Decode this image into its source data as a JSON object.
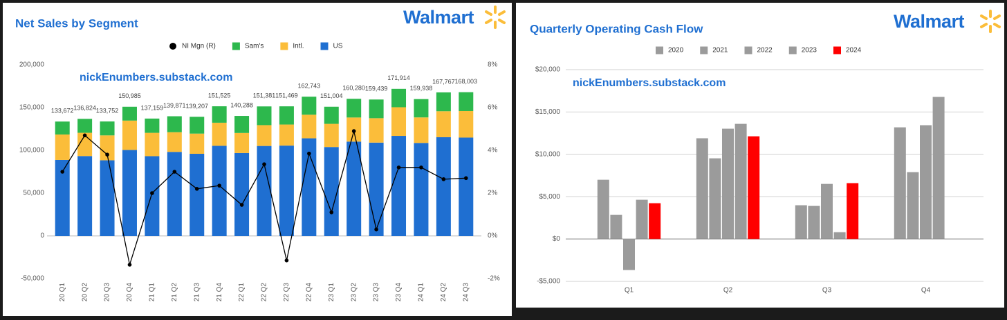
{
  "chart_data": [
    {
      "type": "bar",
      "stacked": true,
      "title": "Net Sales by Segment",
      "logo": "Walmart",
      "watermark": "nickEnumbers.substack.com",
      "categories": [
        "20 Q1",
        "20 Q2",
        "20 Q3",
        "20 Q4",
        "21 Q1",
        "21 Q2",
        "21 Q3",
        "21 Q4",
        "22 Q1",
        "22 Q2",
        "22 Q3",
        "22 Q4",
        "23 Q1",
        "23 Q2",
        "23 Q3",
        "23 Q4",
        "24 Q1",
        "24 Q2",
        "24 Q3"
      ],
      "series": [
        {
          "name": "US",
          "color": "#1f6fd1",
          "values": [
            88743,
            93323,
            88346,
            100449,
            93180,
            98192,
            95962,
            105288,
            96860,
            105127,
            105542,
            114072,
            103875,
            110215,
            109052,
            116913,
            108670,
            115346,
            114940
          ]
        },
        {
          "name": "Intl.",
          "color": "#fbbd3a",
          "values": [
            29766,
            27208,
            29137,
            34358,
            27301,
            23035,
            23621,
            27030,
            23454,
            24350,
            24663,
            27581,
            27118,
            28200,
            28558,
            33504,
            29837,
            30405,
            31045
          ]
        },
        {
          "name": "Sam's",
          "color": "#2db84d",
          "values": [
            15163,
            16293,
            16269,
            16178,
            16678,
            18644,
            19624,
            19207,
            19974,
            21904,
            21264,
            21090,
            20011,
            21865,
            21829,
            21497,
            21431,
            22016,
            22018
          ]
        },
        {
          "name": "NI Mgn (R)",
          "color": "#000000",
          "type": "line",
          "axis": "y2",
          "values": [
            3.0,
            4.7,
            3.8,
            -1.35,
            2.0,
            3.0,
            2.2,
            2.35,
            1.45,
            3.35,
            -1.15,
            3.85,
            1.1,
            4.9,
            0.3,
            3.2,
            3.2,
            2.65,
            2.7
          ]
        }
      ],
      "total_labels": [
        "133,672",
        "136,824",
        "133,752",
        "150,985",
        "137,159",
        "139,871",
        "139,207",
        "151,525",
        "140,288",
        "151,381",
        "151,469",
        "162,743",
        "151,004",
        "160,280",
        "159,439",
        "171,914",
        "159,938",
        "167,767",
        "168,003"
      ],
      "ylim": [
        -50000,
        200000
      ],
      "yticks": [
        {
          "value": -50000,
          "label": "-50,000"
        },
        0,
        {
          "value": 50000,
          "label": "50,000"
        },
        {
          "value": 100000,
          "label": "100,000"
        },
        {
          "value": 150000,
          "label": "150,000"
        },
        {
          "value": 200000,
          "label": "200,000"
        }
      ],
      "y2lim": [
        -2,
        8
      ],
      "y2ticks": [
        {
          "value": -2,
          "label": "-2%"
        },
        {
          "value": 0,
          "label": "0%"
        },
        {
          "value": 2,
          "label": "2%"
        },
        {
          "value": 4,
          "label": "4%"
        },
        {
          "value": 6,
          "label": "6%"
        },
        {
          "value": 8,
          "label": "8%"
        }
      ],
      "grid": false
    },
    {
      "type": "bar",
      "stacked": false,
      "title": "Quarterly Operating Cash Flow",
      "logo": "Walmart",
      "watermark": "nickEnumbers.substack.com",
      "categories": [
        "Q1",
        "Q2",
        "Q3",
        "Q4"
      ],
      "series": [
        {
          "name": "2020",
          "color": "#9b9b9b",
          "values": [
            7000,
            11900,
            3990,
            13190
          ]
        },
        {
          "name": "2021",
          "color": "#9b9b9b",
          "values": [
            2850,
            9530,
            3910,
            7900
          ]
        },
        {
          "name": "2022",
          "color": "#9b9b9b",
          "values": [
            -3660,
            13030,
            6510,
            13440
          ]
        },
        {
          "name": "2023",
          "color": "#9b9b9b",
          "values": [
            4640,
            13600,
            810,
            16780
          ]
        },
        {
          "name": "2024",
          "color": "#ff0000",
          "values": [
            4230,
            12130,
            6600,
            null
          ]
        }
      ],
      "ylim": [
        -5000,
        20000
      ],
      "yticks": [
        {
          "value": -5000,
          "label": "-$5,000"
        },
        {
          "value": 0,
          "label": "$0"
        },
        {
          "value": 5000,
          "label": "$5,000"
        },
        {
          "value": 10000,
          "label": "$10,000"
        },
        {
          "value": 15000,
          "label": "$15,000"
        },
        {
          "value": 20000,
          "label": "$20,000"
        }
      ],
      "grid": true
    }
  ]
}
